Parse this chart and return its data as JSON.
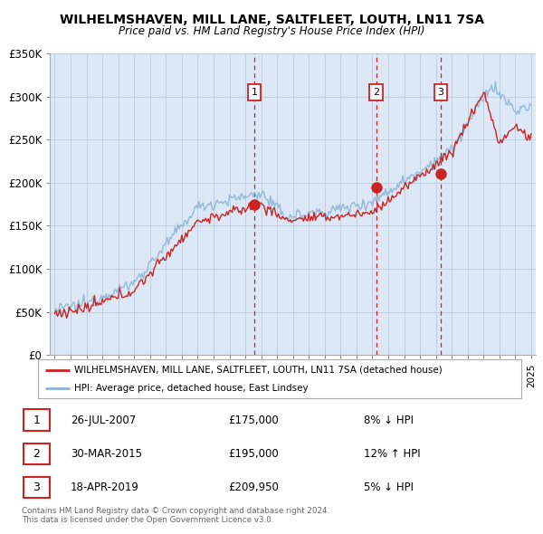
{
  "title": "WILHELMSHAVEN, MILL LANE, SALTFLEET, LOUTH, LN11 7SA",
  "subtitle": "Price paid vs. HM Land Registry's House Price Index (HPI)",
  "ylim": [
    0,
    350000
  ],
  "yticks": [
    0,
    50000,
    100000,
    150000,
    200000,
    250000,
    300000,
    350000
  ],
  "ytick_labels": [
    "£0",
    "£50K",
    "£100K",
    "£150K",
    "£200K",
    "£250K",
    "£300K",
    "£350K"
  ],
  "year_start": 1995,
  "year_end": 2025,
  "sales": [
    {
      "date": 2007.57,
      "price": 175000,
      "label": "1"
    },
    {
      "date": 2015.25,
      "price": 195000,
      "label": "2"
    },
    {
      "date": 2019.3,
      "price": 209950,
      "label": "3"
    }
  ],
  "vline_dates": [
    2007.57,
    2015.25,
    2019.3
  ],
  "hpi_color": "#8ab4d4",
  "sale_color": "#cc2222",
  "chart_bg": "#dce8f5",
  "legend_sale_label": "WILHELMSHAVEN, MILL LANE, SALTFLEET, LOUTH, LN11 7SA (detached house)",
  "legend_hpi_label": "HPI: Average price, detached house, East Lindsey",
  "table_rows": [
    {
      "num": "1",
      "date": "26-JUL-2007",
      "price": "£175,000",
      "change": "8% ↓ HPI"
    },
    {
      "num": "2",
      "date": "30-MAR-2015",
      "price": "£195,000",
      "change": "12% ↑ HPI"
    },
    {
      "num": "3",
      "date": "18-APR-2019",
      "price": "£209,950",
      "change": "5% ↓ HPI"
    }
  ],
  "footer": "Contains HM Land Registry data © Crown copyright and database right 2024.\nThis data is licensed under the Open Government Licence v3.0.",
  "background_color": "#ffffff",
  "grid_color": "#bbccdd"
}
